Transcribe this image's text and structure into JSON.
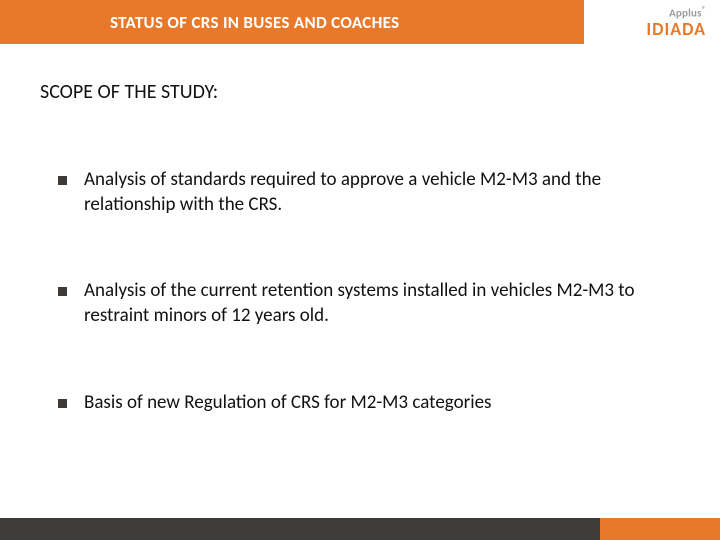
{
  "colors": {
    "accent": "#e8792b",
    "footer_dark": "#3e3b38",
    "logo_gray": "#9b9b9b",
    "text": "#111111",
    "bullet": "#3e3b38",
    "white": "#ffffff"
  },
  "header": {
    "title": "STATUS OF CRS IN BUSES AND COACHES",
    "logo_top": "Applus",
    "logo_reg": "®",
    "logo_bottom": "IDIADA"
  },
  "section_title": "SCOPE OF THE STUDY:",
  "bullets": [
    "Analysis of standards required to approve a vehicle M2-M3 and the relationship with the CRS.",
    "Analysis of the current retention systems installed in vehicles M2-M3 to restraint minors of 12 years old.",
    "Basis of new Regulation of CRS for M2-M3 categories"
  ]
}
